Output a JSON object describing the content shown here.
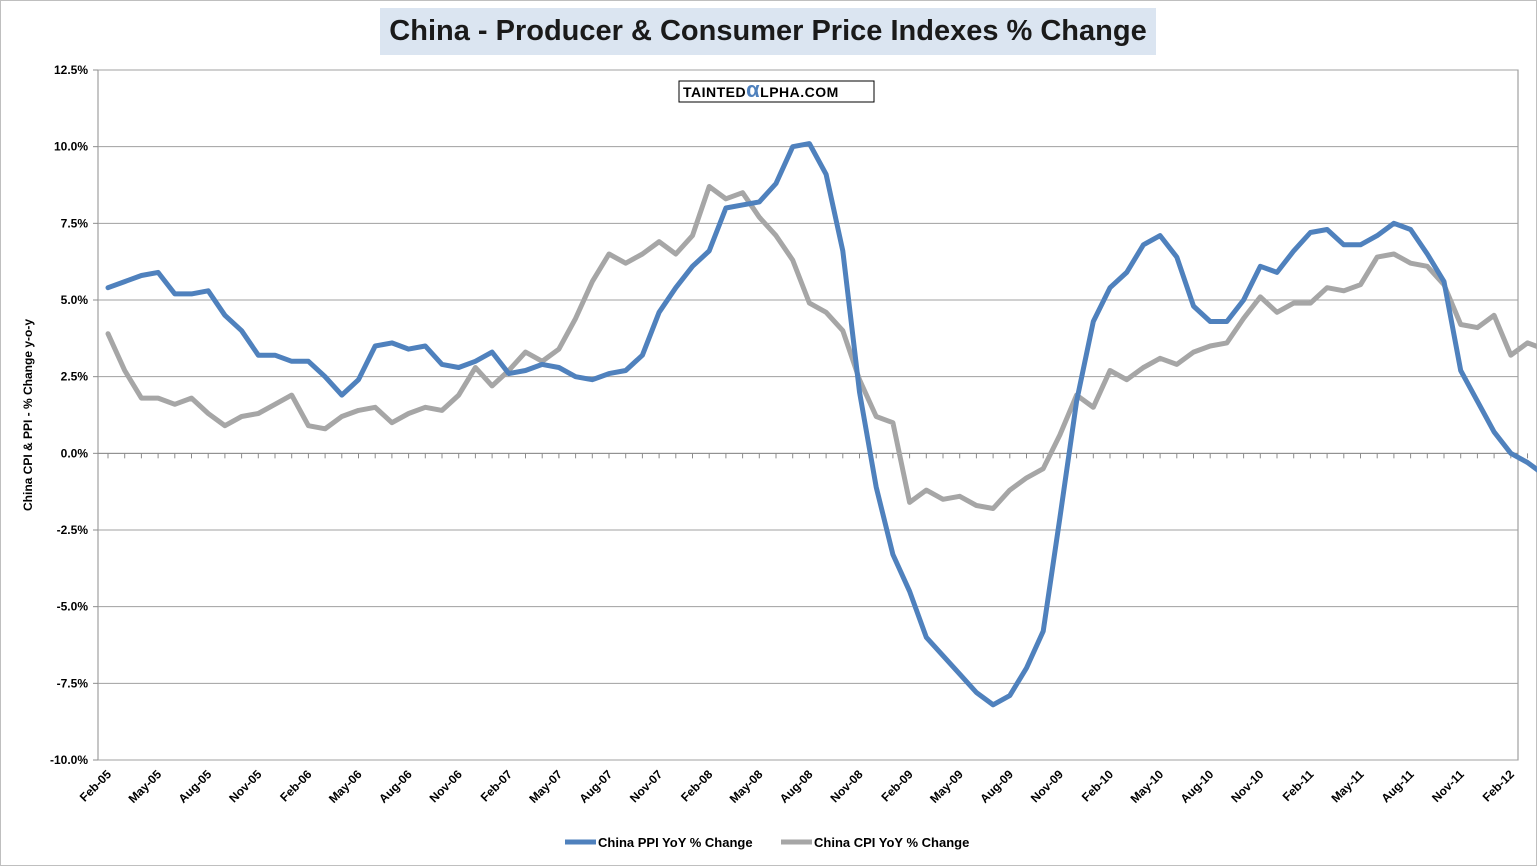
{
  "title": "China - Producer & Consumer Price Indexes % Change",
  "watermark": {
    "prefix": "TAINTED",
    "alpha": "α",
    "suffix": "LPHA.COM"
  },
  "colors": {
    "ppi": "#4f81bd",
    "cpi": "#a6a6a6",
    "title_bg": "#dbe5f1",
    "grid": "#a0a0a0"
  },
  "chart_data": {
    "type": "line",
    "title": "China - Producer & Consumer Price Indexes % Change",
    "xlabel": "",
    "ylabel": "China CPI & PPI - % Change y-o-y",
    "ylim": [
      -10,
      12.5
    ],
    "yticks": [
      "12.5%",
      "10.0%",
      "7.5%",
      "5.0%",
      "2.5%",
      "0.0%",
      "-2.5%",
      "-5.0%",
      "-7.5%",
      "-10.0%"
    ],
    "ytick_values": [
      12.5,
      10,
      7.5,
      5,
      2.5,
      0,
      -2.5,
      -5,
      -7.5,
      -10
    ],
    "x_start": "Feb-05",
    "xticks": [
      "Feb-05",
      "May-05",
      "Aug-05",
      "Nov-05",
      "Feb-06",
      "May-06",
      "Aug-06",
      "Nov-06",
      "Feb-07",
      "May-07",
      "Aug-07",
      "Nov-07",
      "Feb-08",
      "May-08",
      "Aug-08",
      "Nov-08",
      "Feb-09",
      "May-09",
      "Aug-09",
      "Nov-09",
      "Feb-10",
      "May-10",
      "Aug-10",
      "Nov-10",
      "Feb-11",
      "May-11",
      "Aug-11",
      "Nov-11",
      "Feb-12"
    ],
    "grid": true,
    "legend_position": "bottom",
    "series": [
      {
        "name": "China PPI YoY % Change",
        "color": "#4f81bd",
        "values": [
          5.4,
          5.6,
          5.8,
          5.9,
          5.2,
          5.2,
          5.3,
          4.5,
          4.0,
          3.2,
          3.2,
          3.0,
          3.0,
          2.5,
          1.9,
          2.4,
          3.5,
          3.6,
          3.4,
          3.5,
          2.9,
          2.8,
          3.0,
          3.3,
          2.6,
          2.7,
          2.9,
          2.8,
          2.5,
          2.4,
          2.6,
          2.7,
          3.2,
          4.6,
          5.4,
          6.1,
          6.6,
          8.0,
          8.1,
          8.2,
          8.8,
          10.0,
          10.1,
          9.1,
          6.6,
          2.0,
          -1.1,
          -3.3,
          -4.5,
          -6.0,
          -6.6,
          -7.2,
          -7.8,
          -8.2,
          -7.9,
          -7.0,
          -5.8,
          -2.1,
          1.7,
          4.3,
          5.4,
          5.9,
          6.8,
          7.1,
          6.4,
          4.8,
          4.3,
          4.3,
          5.0,
          6.1,
          5.9,
          6.6,
          7.2,
          7.3,
          6.8,
          6.8,
          7.1,
          7.5,
          7.3,
          6.5,
          5.6,
          2.7,
          1.7,
          0.7,
          0.0,
          -0.3,
          -0.7
        ]
      },
      {
        "name": "China CPI YoY % Change",
        "color": "#a6a6a6",
        "values": [
          3.9,
          2.7,
          1.8,
          1.8,
          1.6,
          1.8,
          1.3,
          0.9,
          1.2,
          1.3,
          1.6,
          1.9,
          0.9,
          0.8,
          1.2,
          1.4,
          1.5,
          1.0,
          1.3,
          1.5,
          1.4,
          1.9,
          2.8,
          2.2,
          2.7,
          3.3,
          3.0,
          3.4,
          4.4,
          5.6,
          6.5,
          6.2,
          6.5,
          6.9,
          6.5,
          7.1,
          8.7,
          8.3,
          8.5,
          7.7,
          7.1,
          6.3,
          4.9,
          4.6,
          4.0,
          2.4,
          1.2,
          1.0,
          -1.6,
          -1.2,
          -1.5,
          -1.4,
          -1.7,
          -1.8,
          -1.2,
          -0.8,
          -0.5,
          0.6,
          1.9,
          1.5,
          2.7,
          2.4,
          2.8,
          3.1,
          2.9,
          3.3,
          3.5,
          3.6,
          4.4,
          5.1,
          4.6,
          4.9,
          4.9,
          5.4,
          5.3,
          5.5,
          6.4,
          6.5,
          6.2,
          6.1,
          5.5,
          4.2,
          4.1,
          4.5,
          3.2,
          3.6,
          3.4
        ]
      }
    ]
  }
}
